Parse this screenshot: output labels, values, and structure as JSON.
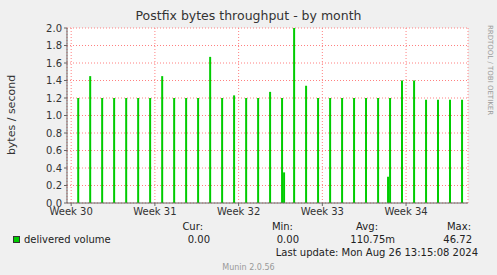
{
  "chart_data": {
    "type": "bar",
    "title": "Postfix bytes throughput - by month",
    "y_label": "bytes / second",
    "x": [
      30.084,
      30.227,
      30.37,
      30.513,
      30.657,
      30.8,
      30.943,
      31.087,
      31.23,
      31.373,
      31.516,
      31.66,
      31.803,
      31.946,
      32.09,
      32.233,
      32.376,
      32.519,
      32.543,
      32.663,
      32.806,
      32.949,
      33.093,
      33.236,
      33.379,
      33.522,
      33.666,
      33.785,
      33.809,
      33.952,
      34.096,
      34.239,
      34.382,
      34.525,
      34.669
    ],
    "series": [
      {
        "name": "delivered volume",
        "color": "#00cc00",
        "values": [
          1.2,
          1.45,
          1.2,
          1.2,
          1.2,
          1.2,
          1.2,
          1.45,
          1.2,
          1.2,
          1.2,
          1.67,
          1.2,
          1.23,
          1.2,
          1.2,
          1.27,
          1.2,
          0.35,
          2.0,
          1.34,
          1.2,
          1.2,
          1.2,
          1.2,
          1.2,
          1.2,
          0.3,
          1.2,
          1.4,
          1.4,
          1.18,
          1.18,
          1.18,
          1.18
        ]
      }
    ],
    "xlim": [
      29.95,
      34.74
    ],
    "xticks": [
      {
        "value": 30,
        "label": "Week 30"
      },
      {
        "value": 31,
        "label": "Week 31"
      },
      {
        "value": 32,
        "label": "Week 32"
      },
      {
        "value": 33,
        "label": "Week 33"
      },
      {
        "value": 34,
        "label": "Week 34"
      }
    ],
    "ylim": [
      0,
      2
    ],
    "yticks": [
      {
        "value": 0,
        "label": "0.0"
      },
      0.2,
      0.4,
      0.6,
      0.8,
      {
        "value": 1,
        "label": "1.0"
      },
      1.2,
      1.4,
      1.6,
      1.8,
      {
        "value": 2,
        "label": "2.0"
      }
    ],
    "grid": true,
    "stats": {
      "labels": [
        "Cur:",
        "Min:",
        "Avg:",
        "Max:"
      ],
      "values": [
        "0.00",
        "0.00",
        "110.75m",
        "46.72"
      ]
    },
    "last_update": "Last update: Mon Aug 26 13:15:08 2024",
    "footer": "Munin 2.0.56",
    "side_text": "RRDTOOL / TOBI OETIKER"
  }
}
